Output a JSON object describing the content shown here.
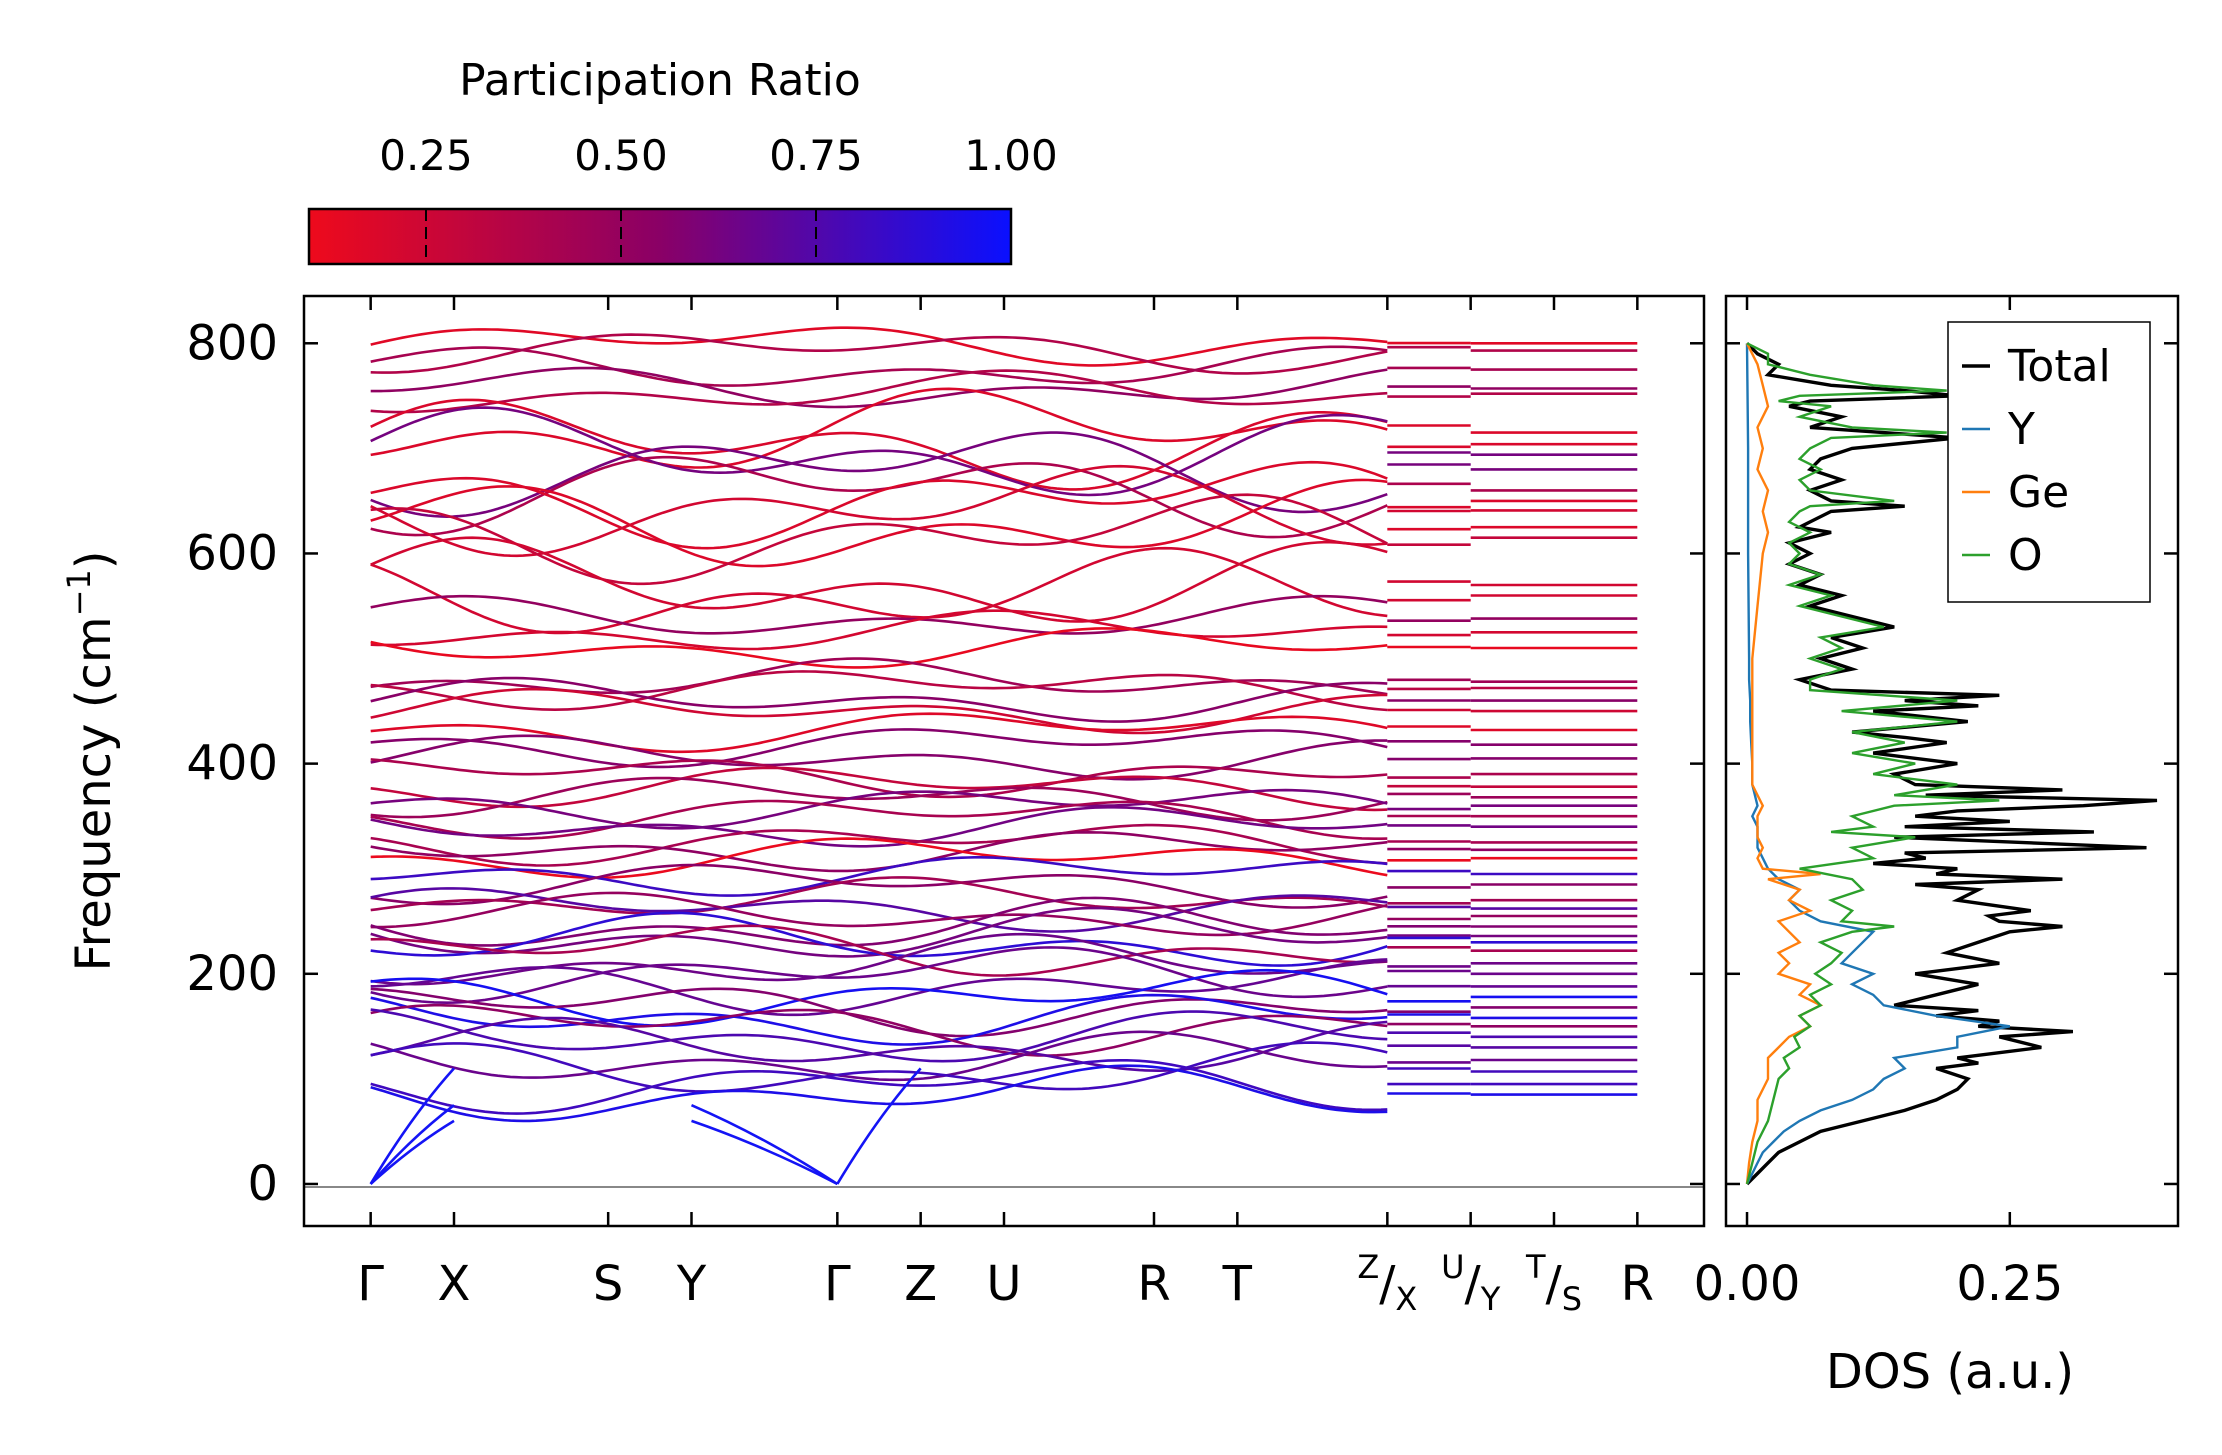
{
  "chart_data": [
    {
      "type": "line",
      "subtype": "phonon-band-structure",
      "ylabel": "Frequency (cm",
      "ylabel_sup": "−1",
      "ylabel_close": ")",
      "ylim": [
        -40,
        845
      ],
      "yticks": [
        0,
        200,
        400,
        600,
        800
      ],
      "ytick_labels": [
        "0",
        "200",
        "400",
        "600",
        "800"
      ],
      "segments": [
        {
          "x_range": [
            0,
            4
          ],
          "labels": [
            "Γ",
            "X",
            "",
            "S",
            "Y",
            "",
            "",
            "",
            "",
            "Γ"
          ],
          "points": [
            0,
            1,
            2.85,
            3.85,
            5.6
          ]
        },
        {
          "x_range": [
            5.6,
            10.6
          ]
        },
        {
          "x_range": [
            10.6,
            11.6
          ]
        },
        {
          "x_range": [
            11.6,
            12.6
          ]
        },
        {
          "x_range": [
            12.6,
            13.6
          ]
        }
      ],
      "xticks": [
        {
          "x": 0,
          "label": "Γ"
        },
        {
          "x": 1,
          "label": "X"
        },
        {
          "x": 2.85,
          "label": "S"
        },
        {
          "x": 3.85,
          "label": "Y"
        },
        {
          "x": 5.6,
          "label": "Γ"
        },
        {
          "x": 6.6,
          "label": "Z"
        },
        {
          "x": 7.6,
          "label": "U"
        },
        {
          "x": 9.4,
          "label": "R"
        },
        {
          "x": 10.4,
          "label": "T"
        },
        {
          "x": 12.2,
          "label": "Z/X",
          "main": "/",
          "sup": "Z",
          "sub": "X"
        },
        {
          "x": 13.2,
          "label": "U/Y",
          "main": "/",
          "sup": "U",
          "sub": "Y"
        },
        {
          "x": 14.2,
          "label": "T/S",
          "main": "/",
          "sup": "T",
          "sub": "S"
        },
        {
          "x": 15.2,
          "label": "R"
        }
      ],
      "xlim": [
        -0.8,
        16.0
      ],
      "flat_bands": [
        800,
        793,
        775,
        757,
        752,
        715,
        704,
        694,
        680,
        660,
        650,
        641,
        625,
        615,
        570,
        560,
        538,
        525,
        510,
        478,
        472,
        460,
        450,
        432,
        418,
        405,
        390,
        378,
        368,
        360,
        350,
        340,
        325,
        318,
        310,
        295,
        285,
        270,
        262,
        255,
        245,
        236,
        230,
        222,
        210,
        200,
        188,
        178,
        168,
        158,
        150,
        140,
        130,
        118,
        107,
        95,
        85
      ],
      "acoustic_modes": true,
      "colorbar": {
        "label": "Participation Ratio",
        "vmin": 0.1,
        "vmax": 1.0,
        "ticks": [
          0.25,
          0.5,
          0.75,
          1.0
        ],
        "tick_labels": [
          "0.25",
          "0.50",
          "0.75",
          "1.00"
        ],
        "color_low": "#ee0a1c",
        "color_mid": "#8a0066",
        "color_high": "#0a10ff"
      }
    },
    {
      "type": "line",
      "subtype": "density-of-states",
      "xlabel": "DOS (a.u.)",
      "xlim": [
        -0.02,
        0.41
      ],
      "xticks": [
        0.0,
        0.25
      ],
      "xtick_labels": [
        "0.00",
        "0.25"
      ],
      "ylim": [
        -40,
        845
      ],
      "legend_position": "top-right",
      "series": [
        {
          "name": "Total",
          "color": "#000000",
          "freq": [
            0,
            10,
            20,
            30,
            40,
            50,
            60,
            70,
            80,
            90,
            100,
            110,
            115,
            120,
            130,
            140,
            145,
            150,
            155,
            160,
            165,
            170,
            180,
            190,
            200,
            210,
            220,
            230,
            240,
            245,
            250,
            255,
            260,
            270,
            280,
            285,
            290,
            295,
            300,
            305,
            310,
            315,
            320,
            330,
            335,
            340,
            345,
            350,
            355,
            360,
            365,
            370,
            375,
            380,
            390,
            400,
            410,
            420,
            425,
            430,
            440,
            450,
            455,
            460,
            465,
            470,
            480,
            490,
            500,
            510,
            520,
            530,
            540,
            550,
            560,
            570,
            580,
            590,
            600,
            610,
            620,
            625,
            630,
            640,
            645,
            650,
            660,
            670,
            680,
            690,
            700,
            710,
            715,
            720,
            730,
            740,
            745,
            750,
            755,
            760,
            770,
            780,
            790,
            800
          ],
          "dos": [
            0,
            0.01,
            0.02,
            0.03,
            0.05,
            0.07,
            0.11,
            0.15,
            0.18,
            0.2,
            0.21,
            0.18,
            0.22,
            0.2,
            0.28,
            0.24,
            0.31,
            0.22,
            0.24,
            0.18,
            0.22,
            0.14,
            0.18,
            0.22,
            0.16,
            0.24,
            0.19,
            0.22,
            0.25,
            0.3,
            0.24,
            0.23,
            0.27,
            0.2,
            0.22,
            0.16,
            0.3,
            0.18,
            0.2,
            0.12,
            0.17,
            0.15,
            0.38,
            0.14,
            0.33,
            0.15,
            0.25,
            0.16,
            0.2,
            0.32,
            0.39,
            0.17,
            0.3,
            0.16,
            0.14,
            0.2,
            0.12,
            0.19,
            0.15,
            0.1,
            0.21,
            0.12,
            0.22,
            0.15,
            0.24,
            0.08,
            0.05,
            0.1,
            0.07,
            0.11,
            0.08,
            0.14,
            0.1,
            0.06,
            0.09,
            0.05,
            0.07,
            0.04,
            0.06,
            0.04,
            0.08,
            0.05,
            0.06,
            0.08,
            0.15,
            0.08,
            0.06,
            0.09,
            0.06,
            0.07,
            0.1,
            0.2,
            0.13,
            0.06,
            0.09,
            0.04,
            0.06,
            0.2,
            0.15,
            0.08,
            0.02,
            0.03,
            0.01,
            0
          ]
        },
        {
          "name": "Y",
          "color": "#1f77b4",
          "freq": [
            0,
            10,
            20,
            30,
            40,
            50,
            60,
            70,
            80,
            90,
            100,
            110,
            120,
            130,
            140,
            150,
            160,
            170,
            180,
            190,
            200,
            210,
            220,
            230,
            240,
            250,
            260,
            270,
            280,
            290,
            300,
            310,
            320,
            330,
            340,
            350,
            360,
            380,
            400,
            420,
            440,
            460,
            480,
            500,
            600,
            700,
            800
          ],
          "dos": [
            0,
            0.005,
            0.01,
            0.015,
            0.025,
            0.035,
            0.05,
            0.07,
            0.1,
            0.12,
            0.13,
            0.15,
            0.14,
            0.2,
            0.2,
            0.25,
            0.18,
            0.13,
            0.12,
            0.1,
            0.12,
            0.09,
            0.1,
            0.11,
            0.12,
            0.07,
            0.05,
            0.04,
            0.05,
            0.03,
            0.02,
            0.015,
            0.01,
            0.01,
            0.01,
            0.005,
            0.01,
            0.005,
            0.005,
            0.004,
            0.003,
            0.003,
            0.002,
            0.002,
            0.001,
            0.001,
            0
          ]
        },
        {
          "name": "Ge",
          "color": "#ff7f0e",
          "freq": [
            0,
            20,
            40,
            60,
            80,
            100,
            120,
            130,
            140,
            150,
            160,
            170,
            180,
            190,
            200,
            210,
            220,
            230,
            240,
            250,
            260,
            270,
            280,
            290,
            295,
            300,
            310,
            320,
            330,
            340,
            350,
            360,
            370,
            380,
            400,
            450,
            500,
            550,
            600,
            620,
            640,
            660,
            680,
            700,
            720,
            740,
            760,
            780,
            800
          ],
          "dos": [
            0,
            0.002,
            0.005,
            0.01,
            0.01,
            0.02,
            0.02,
            0.03,
            0.04,
            0.06,
            0.05,
            0.07,
            0.05,
            0.06,
            0.03,
            0.04,
            0.03,
            0.05,
            0.04,
            0.03,
            0.06,
            0.04,
            0.05,
            0.02,
            0.07,
            0.015,
            0.01,
            0.015,
            0.01,
            0.01,
            0.01,
            0.015,
            0.01,
            0.005,
            0.005,
            0.005,
            0.005,
            0.01,
            0.015,
            0.02,
            0.015,
            0.02,
            0.01,
            0.015,
            0.01,
            0.02,
            0.015,
            0.01,
            0
          ]
        },
        {
          "name": "O",
          "color": "#2ca02c",
          "freq": [
            0,
            20,
            40,
            60,
            80,
            100,
            110,
            120,
            130,
            140,
            150,
            160,
            170,
            180,
            190,
            200,
            210,
            220,
            230,
            240,
            245,
            250,
            260,
            270,
            280,
            290,
            300,
            310,
            320,
            330,
            335,
            340,
            350,
            360,
            365,
            370,
            380,
            390,
            400,
            410,
            420,
            430,
            440,
            450,
            460,
            470,
            480,
            490,
            500,
            510,
            520,
            530,
            540,
            550,
            560,
            570,
            580,
            590,
            600,
            610,
            620,
            630,
            640,
            645,
            650,
            660,
            670,
            680,
            690,
            700,
            710,
            715,
            720,
            730,
            740,
            745,
            750,
            755,
            760,
            770,
            780,
            790,
            800
          ],
          "dos": [
            0,
            0.005,
            0.01,
            0.02,
            0.025,
            0.03,
            0.04,
            0.035,
            0.05,
            0.045,
            0.06,
            0.05,
            0.07,
            0.06,
            0.08,
            0.065,
            0.08,
            0.09,
            0.07,
            0.1,
            0.14,
            0.09,
            0.1,
            0.08,
            0.11,
            0.1,
            0.05,
            0.12,
            0.1,
            0.16,
            0.08,
            0.12,
            0.1,
            0.14,
            0.24,
            0.14,
            0.2,
            0.12,
            0.16,
            0.1,
            0.15,
            0.1,
            0.2,
            0.09,
            0.2,
            0.06,
            0.06,
            0.09,
            0.06,
            0.09,
            0.07,
            0.13,
            0.09,
            0.05,
            0.08,
            0.04,
            0.07,
            0.04,
            0.05,
            0.04,
            0.06,
            0.04,
            0.05,
            0.06,
            0.14,
            0.06,
            0.05,
            0.07,
            0.05,
            0.06,
            0.08,
            0.19,
            0.1,
            0.05,
            0.08,
            0.03,
            0.05,
            0.19,
            0.12,
            0.06,
            0.02,
            0.02,
            0
          ]
        }
      ]
    }
  ]
}
